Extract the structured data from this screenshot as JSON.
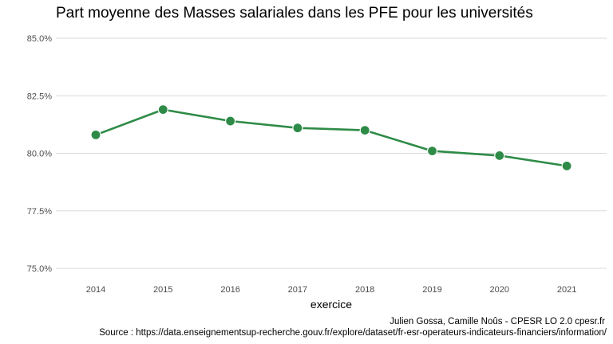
{
  "chart_data": {
    "type": "line",
    "title": "Part moyenne des Masses salariales dans les PFE pour les universités",
    "xlabel": "exercice",
    "ylabel": "",
    "x": [
      "2014",
      "2015",
      "2016",
      "2017",
      "2018",
      "2019",
      "2020",
      "2021"
    ],
    "series": [
      {
        "values": [
          0.808,
          0.819,
          0.814,
          0.811,
          0.81,
          0.801,
          0.799,
          0.7945
        ],
        "color": "#2e8b47"
      }
    ],
    "ylim": [
      0.75,
      0.85
    ],
    "yticks": [
      0.75,
      0.775,
      0.8,
      0.825,
      0.85
    ],
    "ytick_labels": [
      "75.0%",
      "77.5%",
      "80.0%",
      "82.5%",
      "85.0%"
    ],
    "grid": "horizontal",
    "legend": "none"
  },
  "caption": {
    "credit": "Julien Gossa, Camille Noûs - CPESR LO 2.0 cpesr.fr",
    "source": "Source : https://data.enseignementsup-recherche.gouv.fr/explore/dataset/fr-esr-operateurs-indicateurs-financiers/information/"
  }
}
